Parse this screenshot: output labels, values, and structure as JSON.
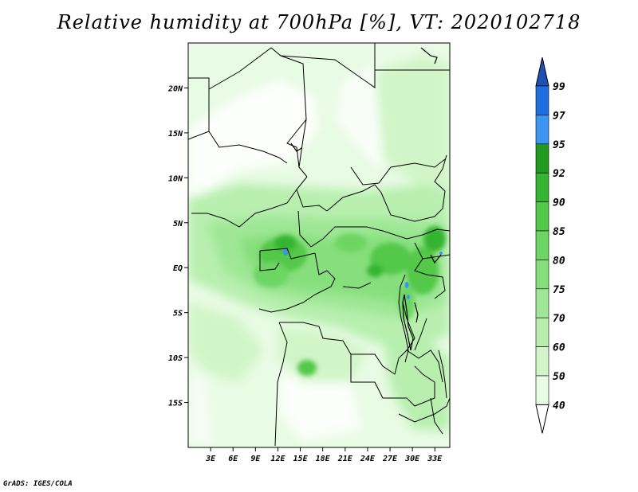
{
  "title": "Relative humidity at 700hPa [%], VT: 2020102718",
  "credit": "GrADS: IGES/COLA",
  "map": {
    "lat_labels": [
      "20N",
      "15N",
      "10N",
      "5N",
      "EQ",
      "5S",
      "10S",
      "15S"
    ],
    "lat_values": [
      20,
      15,
      10,
      5,
      0,
      -5,
      -10,
      -15
    ],
    "lon_labels": [
      "3E",
      "6E",
      "9E",
      "12E",
      "15E",
      "18E",
      "21E",
      "24E",
      "27E",
      "30E",
      "33E"
    ],
    "lon_values": [
      3,
      6,
      9,
      12,
      15,
      18,
      21,
      24,
      27,
      30,
      33
    ],
    "lon_range": [
      0,
      35
    ],
    "lat_range": [
      -20,
      25
    ]
  },
  "colorbar": {
    "labels": [
      "40",
      "50",
      "60",
      "70",
      "75",
      "80",
      "85",
      "90",
      "92",
      "95",
      "97",
      "99"
    ],
    "colors": [
      "#ffffff",
      "#e8fbe4",
      "#d1f5c8",
      "#b8efaf",
      "#9fe796",
      "#86df7c",
      "#6dd563",
      "#52c84a",
      "#34b432",
      "#1e9b1e",
      "#3c95f0",
      "#1e6ee0",
      "#1e50b4"
    ]
  }
}
